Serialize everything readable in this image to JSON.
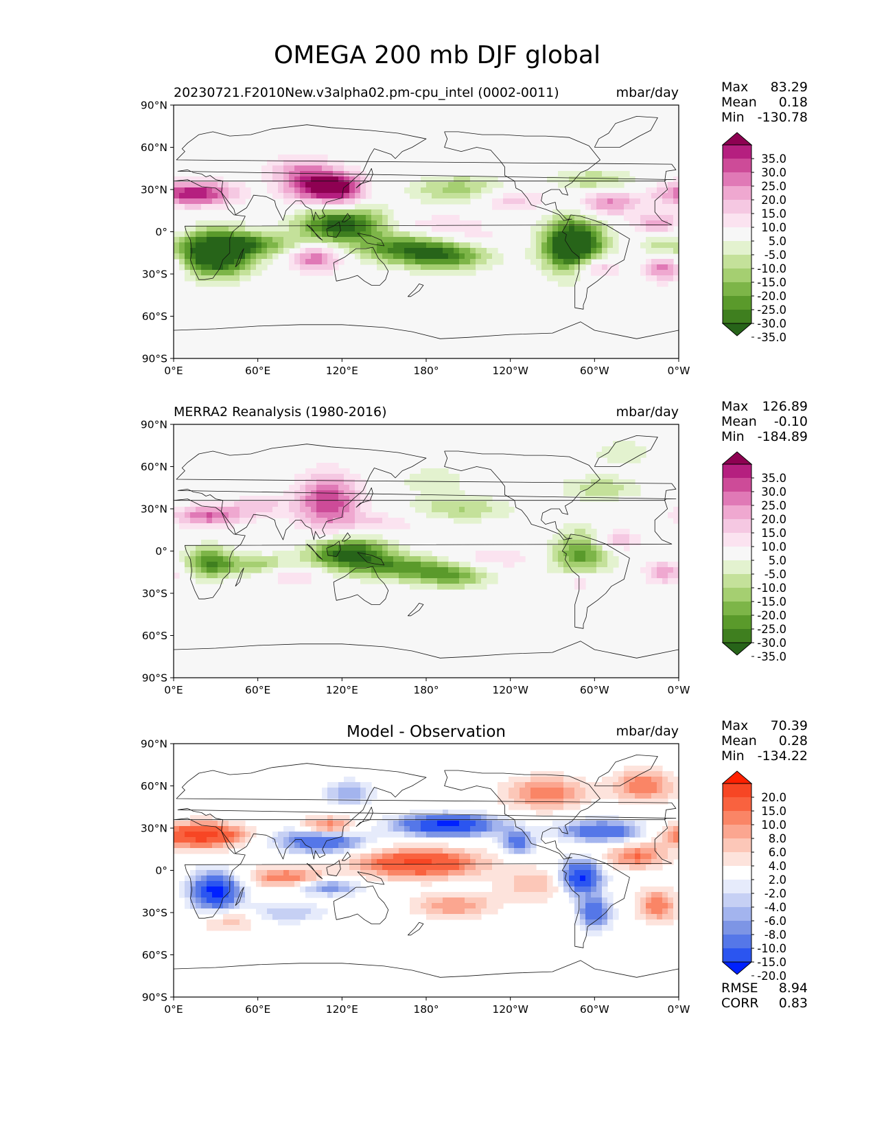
{
  "figure": {
    "title": "OMEGA 200 mb DJF global"
  },
  "chart_data": [
    {
      "type": "heatmap",
      "panel": "test",
      "title": "20230721.F2010New.v3alpha02.pm-cpu_intel (0002-0011)",
      "units": "mbar/day",
      "xticks": [
        "0°E",
        "60°E",
        "120°E",
        "180°",
        "120°W",
        "60°W",
        "0°W"
      ],
      "yticks": [
        "90°N",
        "60°N",
        "30°N",
        "0°",
        "30°S",
        "60°S",
        "90°S"
      ],
      "xlim": [
        0,
        360
      ],
      "ylim": [
        -90,
        90
      ],
      "stats": {
        "max_label": "Max",
        "max": "83.29",
        "mean_label": "Mean",
        "mean": "0.18",
        "min_label": "Min",
        "min": "-130.78"
      },
      "colorbar": {
        "levels": [
          -40,
          -35,
          -30,
          -25,
          -20,
          -15,
          -10,
          -5,
          5,
          10,
          15,
          20,
          25,
          30,
          35,
          40
        ],
        "labels": [
          "35.0",
          "30.0",
          "25.0",
          "20.0",
          "15.0",
          "10.0",
          "5.0",
          "-5.0",
          "-10.0",
          "-15.0",
          "-20.0",
          "-25.0",
          "-30.0",
          "-35.0"
        ],
        "colors": [
          "#276419",
          "#3f7f1f",
          "#5a9a2b",
          "#7db548",
          "#a5cf71",
          "#c4e19a",
          "#e3f2cf",
          "#f7f7f7",
          "#fbe3f0",
          "#f5c8e2",
          "#efa8d0",
          "#e079b6",
          "#cd4b98",
          "#b51f7f",
          "#8e0152"
        ]
      }
    },
    {
      "type": "heatmap",
      "panel": "reference",
      "title": "MERRA2 Reanalysis (1980-2016)",
      "units": "mbar/day",
      "xticks": [
        "0°E",
        "60°E",
        "120°E",
        "180°",
        "120°W",
        "60°W",
        "0°W"
      ],
      "yticks": [
        "90°N",
        "60°N",
        "30°N",
        "0°",
        "30°S",
        "60°S",
        "90°S"
      ],
      "xlim": [
        0,
        360
      ],
      "ylim": [
        -90,
        90
      ],
      "stats": {
        "max_label": "Max",
        "max": "126.89",
        "mean_label": "Mean",
        "mean": "-0.10",
        "min_label": "Min",
        "min": "-184.89"
      },
      "colorbar": {
        "levels": [
          -40,
          -35,
          -30,
          -25,
          -20,
          -15,
          -10,
          -5,
          5,
          10,
          15,
          20,
          25,
          30,
          35,
          40
        ],
        "labels": [
          "35.0",
          "30.0",
          "25.0",
          "20.0",
          "15.0",
          "10.0",
          "5.0",
          "-5.0",
          "-10.0",
          "-15.0",
          "-20.0",
          "-25.0",
          "-30.0",
          "-35.0"
        ],
        "colors": [
          "#276419",
          "#3f7f1f",
          "#5a9a2b",
          "#7db548",
          "#a5cf71",
          "#c4e19a",
          "#e3f2cf",
          "#f7f7f7",
          "#fbe3f0",
          "#f5c8e2",
          "#efa8d0",
          "#e079b6",
          "#cd4b98",
          "#b51f7f",
          "#8e0152"
        ]
      }
    },
    {
      "type": "heatmap",
      "panel": "difference",
      "title": "Model - Observation",
      "units": "mbar/day",
      "xticks": [
        "0°E",
        "60°E",
        "120°E",
        "180°",
        "120°W",
        "60°W",
        "0°W"
      ],
      "yticks": [
        "90°N",
        "60°N",
        "30°N",
        "0°",
        "30°S",
        "60°S",
        "90°S"
      ],
      "xlim": [
        0,
        360
      ],
      "ylim": [
        -90,
        90
      ],
      "stats": {
        "max_label": "Max",
        "max": "70.39",
        "mean_label": "Mean",
        "mean": "0.28",
        "min_label": "Min",
        "min": "-134.22"
      },
      "metrics": {
        "rmse_label": "RMSE",
        "rmse": "8.94",
        "corr_label": "CORR",
        "corr": "0.83"
      },
      "colorbar": {
        "levels": [
          -25,
          -20,
          -15,
          -10,
          -8,
          -6,
          -4,
          -2,
          2,
          4,
          6,
          8,
          10,
          15,
          20,
          25
        ],
        "labels": [
          "20.0",
          "15.0",
          "10.0",
          "8.0",
          "6.0",
          "4.0",
          "2.0",
          "-2.0",
          "-4.0",
          "-6.0",
          "-8.0",
          "-10.0",
          "-15.0",
          "-20.0"
        ],
        "colors": [
          "#0021ff",
          "#2b55f0",
          "#5577e8",
          "#7d95e5",
          "#a3b4ee",
          "#c6d0f4",
          "#e6ebfb",
          "#ffffff",
          "#fde3dc",
          "#fcc7b8",
          "#fba690",
          "#fa8566",
          "#f9623f",
          "#f74624",
          "#ff2000"
        ]
      }
    }
  ]
}
